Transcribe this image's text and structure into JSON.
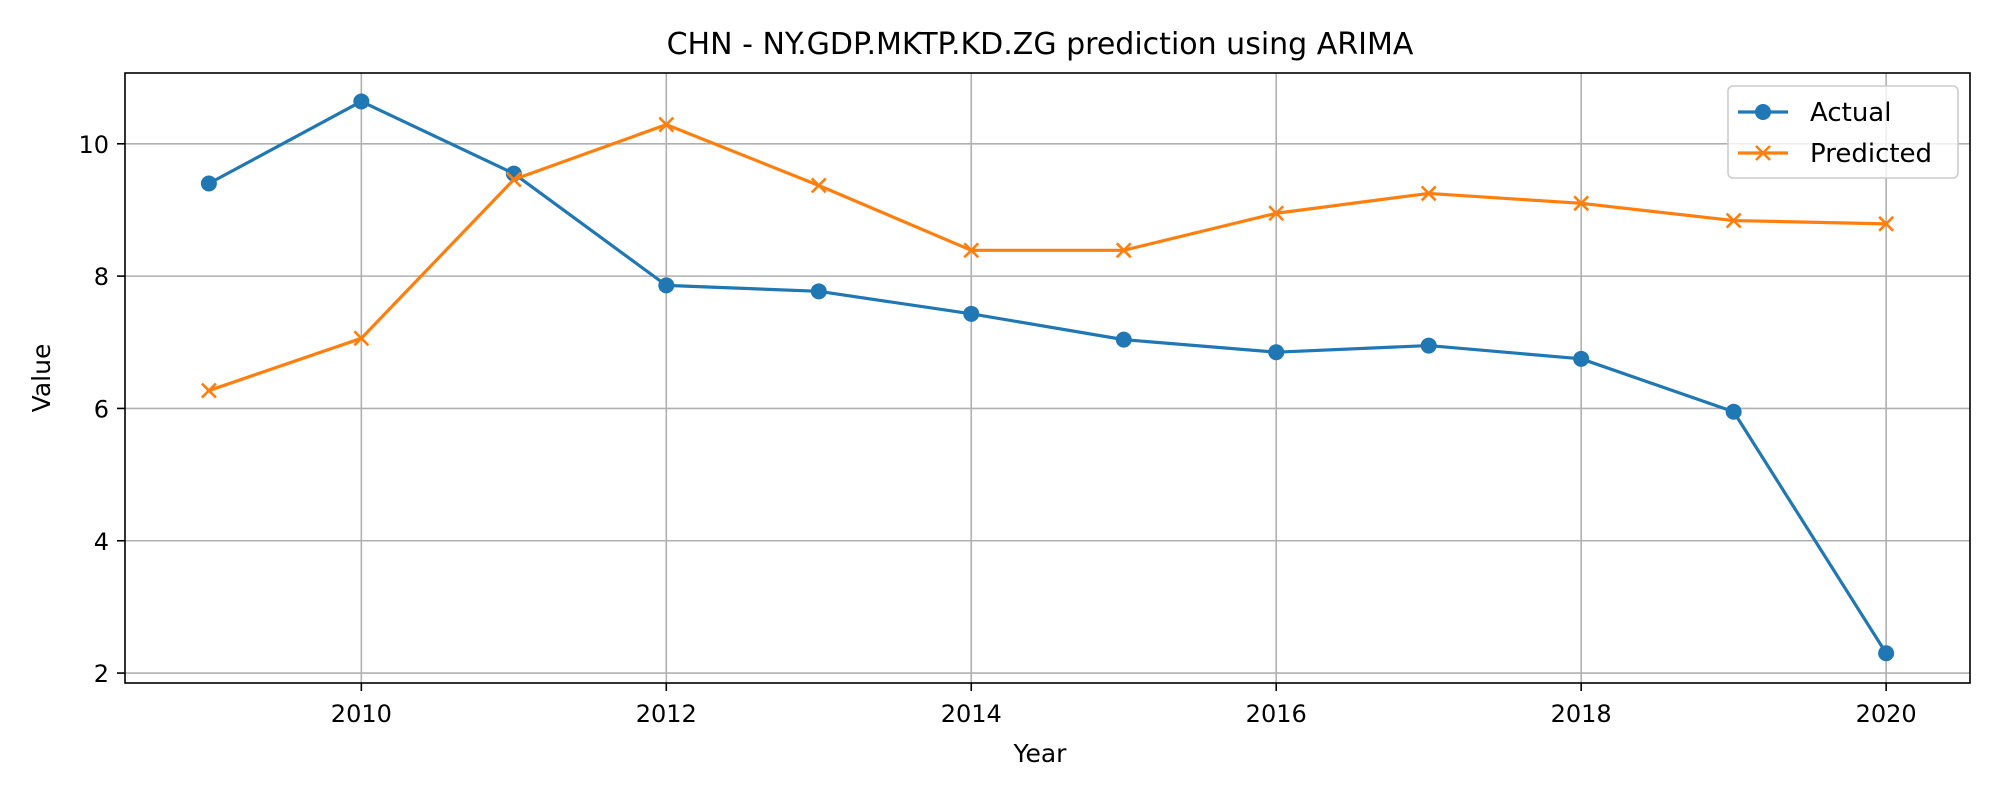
{
  "chart_data": {
    "type": "line",
    "title": "CHN - NY.GDP.MKTP.KD.ZG prediction using ARIMA",
    "xlabel": "Year",
    "ylabel": "Value",
    "x": [
      2009,
      2010,
      2011,
      2012,
      2013,
      2014,
      2015,
      2016,
      2017,
      2018,
      2019,
      2020
    ],
    "xlim": [
      2008.45,
      2020.55
    ],
    "ylim": [
      1.85,
      11.07
    ],
    "xticks": [
      2010,
      2012,
      2014,
      2016,
      2018,
      2020
    ],
    "yticks": [
      2,
      4,
      6,
      8,
      10
    ],
    "grid": true,
    "legend_position": "top-right",
    "series": [
      {
        "name": "Actual",
        "color": "#1f77b4",
        "marker": "circle",
        "values": [
          9.4,
          10.64,
          9.55,
          7.86,
          7.77,
          7.43,
          7.04,
          6.85,
          6.95,
          6.75,
          5.95,
          2.3
        ]
      },
      {
        "name": "Predicted",
        "color": "#ff7f0e",
        "marker": "x",
        "values": [
          6.27,
          7.06,
          9.46,
          10.29,
          9.37,
          8.39,
          8.39,
          8.95,
          9.25,
          9.1,
          8.84,
          8.79
        ]
      }
    ]
  }
}
